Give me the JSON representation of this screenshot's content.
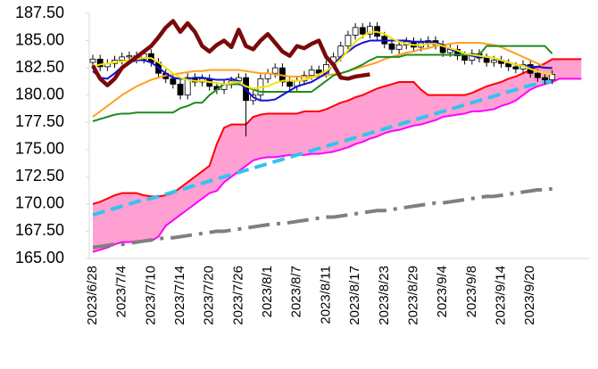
{
  "chart_data": {
    "type": "ichimoku",
    "ylim": [
      165,
      187.5
    ],
    "yticks": [
      {
        "value": 165,
        "label": "165.00"
      },
      {
        "value": 167.5,
        "label": "167.50"
      },
      {
        "value": 170,
        "label": "170.00"
      },
      {
        "value": 172.5,
        "label": "172.50"
      },
      {
        "value": 175,
        "label": "175.00"
      },
      {
        "value": 177.5,
        "label": "177.50"
      },
      {
        "value": 180,
        "label": "180.00"
      },
      {
        "value": 182.5,
        "label": "182.50"
      },
      {
        "value": 185,
        "label": "185.00"
      },
      {
        "value": 187.5,
        "label": "187.50"
      }
    ],
    "categories": [
      "2023/6/28",
      null,
      null,
      null,
      "2023/7/4",
      null,
      null,
      null,
      "2023/7/10",
      null,
      null,
      null,
      "2023/7/14",
      null,
      null,
      null,
      "2023/7/20",
      null,
      null,
      null,
      "2023/7/26",
      null,
      null,
      null,
      "2023/8/1",
      null,
      null,
      null,
      "2023/8/7",
      null,
      null,
      null,
      "2023/8/11",
      null,
      null,
      null,
      "2023/8/17",
      null,
      null,
      null,
      "2023/8/23",
      null,
      null,
      null,
      "2023/8/29",
      null,
      null,
      null,
      "2023/9/4",
      null,
      null,
      null,
      "2023/9/8",
      null,
      null,
      null,
      "2023/9/14",
      null,
      null,
      null,
      "2023/9/20",
      null,
      null,
      null,
      null,
      null,
      null,
      null
    ],
    "candles": {
      "up_color": "#ffffff",
      "down_color": "#000000",
      "open": [
        183.0,
        183.3,
        182.6,
        182.9,
        183.2,
        183.5,
        183.6,
        183.3,
        183.8,
        183.0,
        182.0,
        181.5,
        181.0,
        180.0,
        181.6,
        181.2,
        181.5,
        180.8,
        180.5,
        181.0,
        181.3,
        181.6,
        179.5,
        180.0,
        181.5,
        182.0,
        182.5,
        181.2,
        180.8,
        181.3,
        181.8,
        182.3,
        182.0,
        182.8,
        183.5,
        184.5,
        185.5,
        186.2,
        185.6,
        186.3,
        185.4,
        184.7,
        184.2,
        184.6,
        184.9,
        184.4,
        184.8,
        185.0,
        184.6,
        183.9,
        184.2,
        183.6,
        183.2,
        183.8,
        183.4,
        183.0,
        183.2,
        182.9,
        182.6,
        182.4,
        182.8,
        182.0,
        181.6,
        181.4,
        null,
        null,
        null,
        null
      ],
      "high": [
        183.7,
        183.7,
        183.3,
        183.6,
        183.9,
        184.0,
        184.0,
        184.2,
        184.2,
        183.4,
        182.4,
        181.9,
        181.4,
        182.0,
        182.0,
        181.9,
        181.9,
        181.2,
        181.4,
        181.7,
        182.0,
        182.0,
        180.4,
        181.9,
        182.4,
        182.9,
        182.9,
        181.6,
        181.7,
        182.2,
        182.7,
        182.7,
        183.2,
        183.9,
        184.9,
        185.9,
        186.6,
        186.6,
        186.7,
        186.7,
        185.8,
        185.1,
        185.0,
        185.3,
        185.3,
        185.2,
        185.4,
        185.4,
        185.0,
        184.6,
        184.6,
        184.0,
        184.2,
        184.2,
        183.8,
        183.6,
        183.6,
        183.3,
        183.0,
        183.2,
        183.2,
        182.4,
        182.0,
        182.3,
        null,
        null,
        null,
        null
      ],
      "low": [
        182.6,
        182.2,
        182.2,
        182.5,
        182.8,
        183.1,
        182.9,
        182.9,
        182.6,
        181.6,
        181.1,
        180.6,
        179.6,
        179.6,
        180.8,
        180.8,
        180.4,
        180.1,
        180.1,
        180.6,
        180.9,
        176.2,
        179.1,
        179.6,
        181.1,
        181.6,
        180.8,
        180.4,
        180.4,
        180.9,
        181.4,
        181.6,
        181.6,
        182.4,
        183.1,
        184.1,
        185.1,
        185.2,
        185.2,
        185.0,
        184.3,
        183.8,
        183.8,
        184.2,
        184.0,
        184.0,
        184.4,
        184.2,
        183.5,
        183.5,
        183.2,
        182.8,
        182.8,
        183.0,
        182.6,
        182.6,
        182.5,
        182.2,
        182.0,
        182.0,
        181.6,
        181.2,
        181.0,
        181.0,
        null,
        null,
        null,
        null
      ],
      "close": [
        183.3,
        182.6,
        182.9,
        183.2,
        183.5,
        183.6,
        183.3,
        183.8,
        183.0,
        182.0,
        181.5,
        181.0,
        180.0,
        181.6,
        181.2,
        181.5,
        180.8,
        180.5,
        181.0,
        181.3,
        181.6,
        179.5,
        180.0,
        181.5,
        182.0,
        182.5,
        181.2,
        180.8,
        181.3,
        181.8,
        182.3,
        182.0,
        182.8,
        183.5,
        184.5,
        185.5,
        186.2,
        185.6,
        186.3,
        185.4,
        184.7,
        184.2,
        184.6,
        184.9,
        184.4,
        184.8,
        185.0,
        184.6,
        183.9,
        184.2,
        183.6,
        183.2,
        183.8,
        183.4,
        183.0,
        183.2,
        182.9,
        182.6,
        182.4,
        182.8,
        182.0,
        181.6,
        181.4,
        181.9,
        null,
        null,
        null,
        null
      ]
    },
    "series": [
      {
        "color": "#ff0000",
        "width": 2,
        "style": "solid",
        "values": [
          170.0,
          170.2,
          170.5,
          170.8,
          171.0,
          171.0,
          171.0,
          170.8,
          170.7,
          170.7,
          170.8,
          171.0,
          171.5,
          172.0,
          172.5,
          173.0,
          173.5,
          175.5,
          177.0,
          177.3,
          177.3,
          177.3,
          178.0,
          178.2,
          178.3,
          178.3,
          178.3,
          178.3,
          178.3,
          178.5,
          178.5,
          178.5,
          178.7,
          179.0,
          179.3,
          179.5,
          179.8,
          180.0,
          180.3,
          180.6,
          180.8,
          181.0,
          181.2,
          181.2,
          181.2,
          180.5,
          180.0,
          180.0,
          180.0,
          180.0,
          180.0,
          180.0,
          180.2,
          180.5,
          180.8,
          181.0,
          181.2,
          181.5,
          181.7,
          182.0,
          182.3,
          182.6,
          182.9,
          183.3,
          183.3,
          183.3,
          183.3,
          183.3
        ]
      },
      {
        "color": "#ff00ff",
        "width": 2,
        "style": "solid",
        "fill": "#ff9fd2",
        "values": [
          165.6,
          165.8,
          166.0,
          166.3,
          166.5,
          166.5,
          166.6,
          166.6,
          166.6,
          167.0,
          168.0,
          168.5,
          169.0,
          169.5,
          170.0,
          170.5,
          171.0,
          171.2,
          172.0,
          172.5,
          173.0,
          173.5,
          174.0,
          174.2,
          174.3,
          174.3,
          174.4,
          174.5,
          174.5,
          174.5,
          174.6,
          174.6,
          174.7,
          174.8,
          175.0,
          175.2,
          175.5,
          175.7,
          176.0,
          176.2,
          176.5,
          176.7,
          176.8,
          177.0,
          177.2,
          177.3,
          177.5,
          177.7,
          178.0,
          178.1,
          178.2,
          178.3,
          178.5,
          178.5,
          178.6,
          178.7,
          179.0,
          179.2,
          179.5,
          180.0,
          180.5,
          180.8,
          181.0,
          181.2,
          181.5,
          181.5,
          181.5,
          181.5
        ]
      },
      {
        "color": "#7f7f7f",
        "width": 4,
        "style": "dashdot",
        "values": [
          166.0,
          166.1,
          166.2,
          166.3,
          166.3,
          166.4,
          166.5,
          166.6,
          166.7,
          166.8,
          166.9,
          166.9,
          167.0,
          167.1,
          167.2,
          167.3,
          167.4,
          167.5,
          167.5,
          167.6,
          167.7,
          167.8,
          167.9,
          168.0,
          168.1,
          168.2,
          168.2,
          168.3,
          168.4,
          168.5,
          168.6,
          168.7,
          168.8,
          168.8,
          168.9,
          169.0,
          169.1,
          169.2,
          169.3,
          169.4,
          169.4,
          169.5,
          169.6,
          169.7,
          169.8,
          169.9,
          170.0,
          170.1,
          170.1,
          170.2,
          170.3,
          170.4,
          170.5,
          170.6,
          170.7,
          170.7,
          170.8,
          170.9,
          171.0,
          171.1,
          171.2,
          171.3,
          171.3,
          171.4,
          null,
          null,
          null,
          null
        ]
      },
      {
        "color": "#33c3f0",
        "width": 4,
        "style": "dashed",
        "values": [
          169.0,
          169.2,
          169.4,
          169.6,
          169.8,
          170.0,
          170.2,
          170.4,
          170.5,
          170.7,
          170.9,
          171.1,
          171.3,
          171.5,
          171.7,
          171.9,
          172.1,
          172.3,
          172.5,
          172.7,
          172.9,
          173.1,
          173.3,
          173.5,
          173.7,
          173.9,
          174.1,
          174.3,
          174.5,
          174.7,
          174.9,
          175.1,
          175.3,
          175.5,
          175.7,
          175.9,
          176.1,
          176.3,
          176.5,
          176.7,
          176.9,
          177.1,
          177.3,
          177.5,
          177.7,
          177.9,
          178.1,
          178.3,
          178.5,
          178.7,
          178.9,
          179.1,
          179.3,
          179.5,
          179.7,
          179.9,
          180.1,
          180.3,
          180.5,
          180.7,
          180.9,
          181.0,
          181.2,
          181.3,
          null,
          null,
          null,
          null
        ]
      },
      {
        "color": "#ffa020",
        "width": 2,
        "style": "solid",
        "values": [
          178.0,
          178.5,
          179.0,
          179.5,
          180.0,
          180.4,
          180.8,
          181.1,
          181.4,
          181.6,
          181.8,
          181.9,
          182.0,
          182.1,
          182.2,
          182.2,
          182.3,
          182.3,
          182.3,
          182.3,
          182.3,
          182.2,
          182.1,
          182.0,
          182.0,
          181.9,
          181.8,
          181.7,
          181.7,
          181.7,
          181.7,
          181.7,
          181.8,
          181.9,
          182.0,
          182.2,
          182.4,
          182.6,
          182.8,
          183.0,
          183.3,
          183.5,
          183.7,
          183.9,
          184.0,
          184.2,
          184.3,
          184.5,
          184.6,
          184.7,
          184.8,
          184.8,
          184.8,
          184.8,
          184.7,
          184.6,
          184.4,
          184.1,
          183.8,
          183.5,
          183.2,
          182.9,
          182.6,
          182.3,
          null,
          null,
          null,
          null
        ]
      },
      {
        "color": "#1f8a1f",
        "width": 2,
        "style": "solid",
        "values": [
          177.6,
          177.8,
          178.0,
          178.2,
          178.3,
          178.3,
          178.4,
          178.4,
          178.4,
          178.4,
          178.4,
          178.4,
          178.8,
          179.0,
          179.3,
          179.3,
          180.0,
          180.5,
          181.0,
          181.0,
          181.0,
          180.8,
          180.5,
          180.3,
          180.3,
          180.3,
          180.3,
          180.3,
          180.3,
          180.3,
          180.3,
          180.8,
          181.3,
          181.8,
          182.0,
          182.2,
          182.5,
          182.8,
          183.2,
          183.5,
          183.5,
          183.5,
          183.5,
          183.7,
          183.7,
          183.7,
          183.7,
          183.7,
          183.7,
          183.7,
          183.7,
          183.7,
          183.7,
          183.7,
          184.5,
          184.5,
          184.5,
          184.5,
          184.5,
          184.5,
          184.5,
          184.5,
          184.5,
          183.8,
          null,
          null,
          null,
          null
        ]
      },
      {
        "color": "#1010e0",
        "width": 2,
        "style": "solid",
        "values": [
          182.2,
          181.6,
          181.5,
          182.0,
          182.6,
          183.0,
          183.2,
          183.2,
          183.0,
          182.5,
          182.0,
          181.6,
          181.5,
          181.5,
          181.6,
          181.6,
          181.5,
          181.4,
          181.4,
          181.5,
          181.3,
          180.5,
          179.8,
          179.5,
          179.5,
          179.6,
          180.0,
          180.4,
          180.8,
          181.0,
          181.2,
          181.6,
          182.0,
          182.8,
          183.5,
          184.0,
          184.5,
          184.8,
          185.0,
          185.0,
          185.0,
          185.0,
          185.0,
          185.0,
          184.9,
          184.9,
          184.9,
          184.8,
          184.6,
          184.2,
          184.0,
          183.8,
          183.6,
          183.5,
          183.5,
          183.4,
          183.2,
          183.0,
          182.8,
          182.7,
          182.6,
          182.6,
          182.5,
          182.5,
          null,
          null,
          null,
          null
        ]
      },
      {
        "color": "#f5e400",
        "width": 2,
        "style": "solid",
        "values": [
          182.6,
          182.8,
          182.9,
          183.0,
          183.1,
          183.2,
          183.3,
          183.4,
          183.4,
          183.0,
          182.5,
          182.0,
          181.6,
          181.4,
          181.3,
          181.3,
          181.2,
          181.1,
          181.0,
          181.1,
          181.2,
          180.8,
          180.6,
          180.7,
          180.8,
          181.1,
          181.3,
          181.4,
          181.3,
          181.4,
          181.6,
          181.9,
          182.2,
          182.7,
          183.3,
          184.1,
          184.9,
          185.4,
          185.8,
          185.8,
          185.6,
          185.2,
          184.9,
          184.7,
          184.6,
          184.6,
          184.7,
          184.7,
          184.5,
          184.3,
          184.1,
          183.8,
          183.7,
          183.6,
          183.5,
          183.4,
          183.2,
          183.0,
          182.8,
          182.7,
          182.4,
          182.2,
          182.0,
          181.9,
          null,
          null,
          null,
          null
        ]
      },
      {
        "color": "#7a0a0a",
        "width": 4.5,
        "style": "solid",
        "values": [
          182.7,
          181.5,
          180.9,
          181.5,
          182.5,
          183.0,
          183.5,
          184.0,
          184.5,
          185.3,
          186.2,
          186.8,
          185.8,
          186.6,
          185.8,
          184.5,
          184.0,
          184.6,
          185.0,
          184.4,
          186.0,
          184.5,
          184.2,
          185.0,
          185.6,
          184.8,
          184.0,
          183.6,
          184.5,
          184.3,
          184.7,
          185.0,
          183.5,
          182.8,
          181.6,
          181.5,
          181.7,
          181.8,
          181.9,
          null,
          null,
          null,
          null,
          null,
          null,
          null,
          null,
          null,
          null,
          null,
          null,
          null,
          null,
          null,
          null,
          null,
          null,
          null,
          null,
          null,
          null,
          null,
          null,
          null,
          null,
          null,
          null,
          null
        ]
      }
    ]
  }
}
